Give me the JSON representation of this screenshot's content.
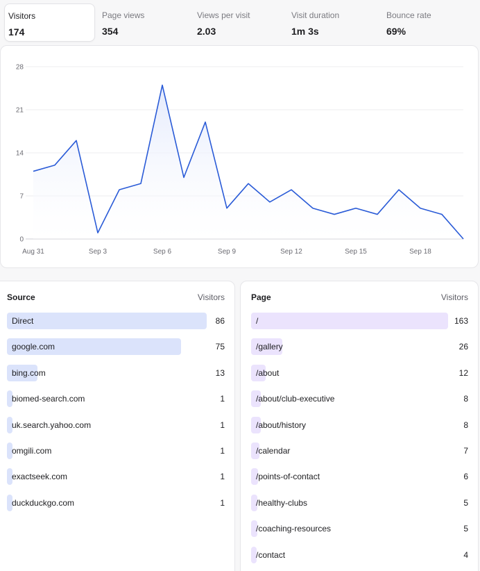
{
  "metrics": [
    {
      "label": "Visitors",
      "value": "174",
      "active": true
    },
    {
      "label": "Page views",
      "value": "354",
      "active": false
    },
    {
      "label": "Views per visit",
      "value": "2.03",
      "active": false
    },
    {
      "label": "Visit duration",
      "value": "1m 3s",
      "active": false
    },
    {
      "label": "Bounce rate",
      "value": "69%",
      "active": false
    }
  ],
  "colors": {
    "line": "#2a5bd7",
    "area_top": "#e4eafc",
    "grid": "#ececef",
    "source_bar": "#dbe3fb",
    "page_bar": "#ebe3fd"
  },
  "chart_data": {
    "type": "area",
    "x": [
      "Aug 31",
      "Sep 1",
      "Sep 2",
      "Sep 3",
      "Sep 4",
      "Sep 5",
      "Sep 6",
      "Sep 7",
      "Sep 8",
      "Sep 9",
      "Sep 10",
      "Sep 11",
      "Sep 12",
      "Sep 13",
      "Sep 14",
      "Sep 15",
      "Sep 16",
      "Sep 17",
      "Sep 18",
      "Sep 19",
      "Sep 20"
    ],
    "series": [
      {
        "values": [
          11,
          12,
          16,
          1,
          8,
          9,
          25,
          10,
          19,
          5,
          9,
          6,
          8,
          5,
          4,
          5,
          4,
          8,
          5,
          4,
          0
        ]
      }
    ],
    "x_tick_labels": [
      "Aug 31",
      "Sep 3",
      "Sep 6",
      "Sep 9",
      "Sep 12",
      "Sep 15",
      "Sep 18"
    ],
    "x_tick_index": [
      0,
      3,
      6,
      9,
      12,
      15,
      18
    ],
    "y_ticks": [
      0,
      7,
      14,
      21,
      28
    ],
    "ylim": [
      0,
      28
    ],
    "grid": true
  },
  "sources": {
    "header_name": "Source",
    "header_value": "Visitors",
    "rows": [
      {
        "label": "Direct",
        "value": 86
      },
      {
        "label": "google.com",
        "value": 75
      },
      {
        "label": "bing.com",
        "value": 13
      },
      {
        "label": "biomed-search.com",
        "value": 1
      },
      {
        "label": "uk.search.yahoo.com",
        "value": 1
      },
      {
        "label": "omgili.com",
        "value": 1
      },
      {
        "label": "exactseek.com",
        "value": 1
      },
      {
        "label": "duckduckgo.com",
        "value": 1
      }
    ]
  },
  "pages": {
    "header_name": "Page",
    "header_value": "Visitors",
    "rows": [
      {
        "label": "/",
        "value": 163
      },
      {
        "label": "/gallery",
        "value": 26
      },
      {
        "label": "/about",
        "value": 12
      },
      {
        "label": "/about/club-executive",
        "value": 8
      },
      {
        "label": "/about/history",
        "value": 8
      },
      {
        "label": "/calendar",
        "value": 7
      },
      {
        "label": "/points-of-contact",
        "value": 6
      },
      {
        "label": "/healthy-clubs",
        "value": 5
      },
      {
        "label": "/coaching-resources",
        "value": 5
      },
      {
        "label": "/contact",
        "value": 4
      }
    ]
  }
}
